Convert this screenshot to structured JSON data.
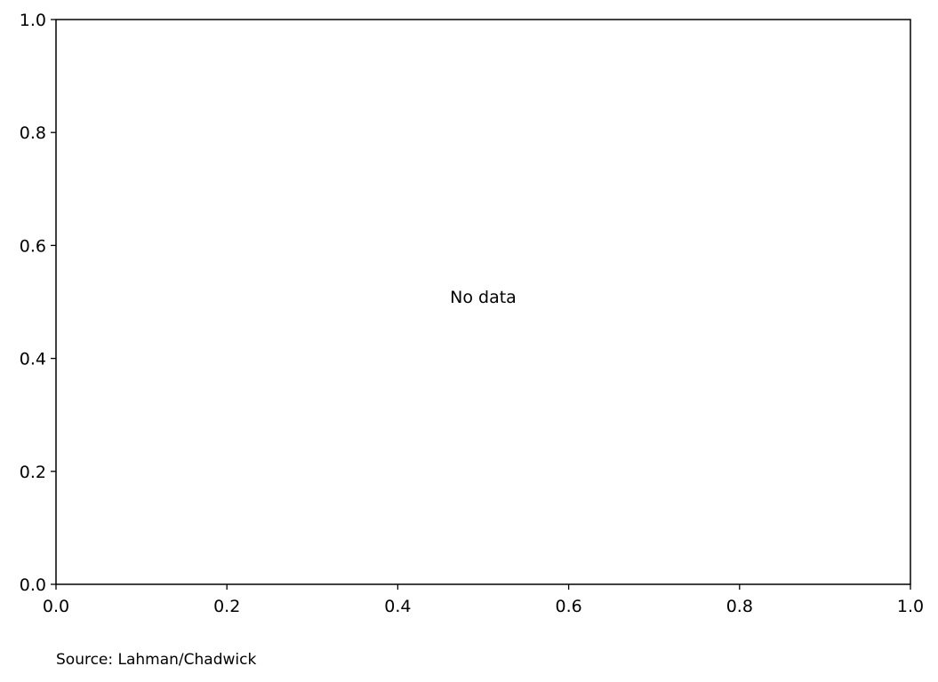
{
  "chart_data": {
    "type": "scatter",
    "title": "",
    "xlabel": "",
    "ylabel": "",
    "xlim": [
      0.0,
      1.0
    ],
    "ylim": [
      0.0,
      1.0
    ],
    "x_ticks": [
      "0.0",
      "0.2",
      "0.4",
      "0.6",
      "0.8",
      "1.0"
    ],
    "y_ticks": [
      "0.0",
      "0.2",
      "0.4",
      "0.6",
      "0.8",
      "1.0"
    ],
    "grid": false,
    "series": [],
    "annotation": "No data",
    "source": "Source: Lahman/Chadwick"
  },
  "colors": {
    "axis": "#000000",
    "background": "#ffffff",
    "text": "#000000"
  }
}
